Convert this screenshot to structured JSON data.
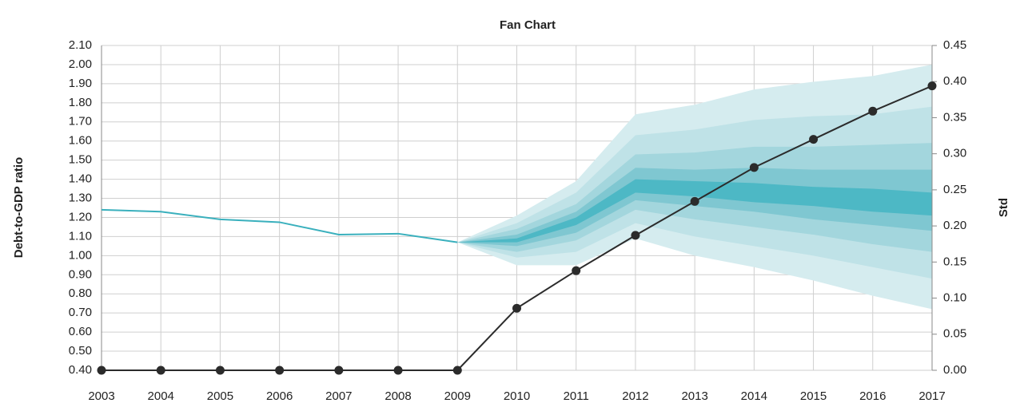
{
  "chart_data": {
    "type": "line",
    "title": "Fan Chart",
    "y_label": "Debt-to-GDP ratio",
    "y2_label": "Std",
    "x": [
      2003,
      2004,
      2005,
      2006,
      2007,
      2008,
      2009,
      2010,
      2011,
      2012,
      2013,
      2014,
      2015,
      2016,
      2017
    ],
    "xlim": [
      2003,
      2017
    ],
    "xticks": [
      2003,
      2004,
      2005,
      2006,
      2007,
      2008,
      2009,
      2010,
      2011,
      2012,
      2013,
      2014,
      2015,
      2016,
      2017
    ],
    "ylim": [
      0.4,
      2.1
    ],
    "yticks": [
      {
        "value": 0.4,
        "label": "0.40"
      },
      {
        "value": 0.5,
        "label": "0.50"
      },
      {
        "value": 0.6,
        "label": "0.60"
      },
      {
        "value": 0.7,
        "label": "0.70"
      },
      {
        "value": 0.8,
        "label": "0.80"
      },
      {
        "value": 0.9,
        "label": "0.90"
      },
      {
        "value": 1.0,
        "label": "1.00"
      },
      {
        "value": 1.1,
        "label": "1.10"
      },
      {
        "value": 1.2,
        "label": "1.20"
      },
      {
        "value": 1.3,
        "label": "1.30"
      },
      {
        "value": 1.4,
        "label": "1.40"
      },
      {
        "value": 1.5,
        "label": "1.50"
      },
      {
        "value": 1.6,
        "label": "1.60"
      },
      {
        "value": 1.7,
        "label": "1.70"
      },
      {
        "value": 1.8,
        "label": "1.80"
      },
      {
        "value": 1.9,
        "label": "1.90"
      },
      {
        "value": 2.0,
        "label": "2.00"
      },
      {
        "value": 2.1,
        "label": "2.10"
      }
    ],
    "y2lim": [
      0,
      0.45
    ],
    "y2ticks": [
      {
        "value": 0,
        "label": "0.00"
      },
      0.05,
      {
        "value": 0.1,
        "label": "0.10"
      },
      0.15,
      {
        "value": 0.2,
        "label": "0.20"
      },
      0.25,
      {
        "value": 0.3,
        "label": "0.30"
      },
      0.35,
      {
        "value": 0.4,
        "label": "0.40"
      },
      0.45
    ],
    "grid": true,
    "fan": {
      "colors": [
        "#d5ecef",
        "#bfe2e7",
        "#a3d6dd",
        "#7fc7d1",
        "#4db8c5"
      ],
      "bands": [
        {
          "lower": [
            null,
            null,
            null,
            null,
            null,
            null,
            1.07,
            0.95,
            0.95,
            1.09,
            1.0,
            0.94,
            0.87,
            0.79,
            0.72
          ],
          "upper": [
            null,
            null,
            null,
            null,
            null,
            null,
            1.07,
            1.21,
            1.39,
            1.74,
            1.79,
            1.87,
            1.91,
            1.94,
            2.0
          ]
        },
        {
          "lower": [
            null,
            null,
            null,
            null,
            null,
            null,
            1.07,
            0.99,
            1.02,
            1.17,
            1.1,
            1.05,
            1.0,
            0.94,
            0.88
          ],
          "upper": [
            null,
            null,
            null,
            null,
            null,
            null,
            1.07,
            1.17,
            1.33,
            1.63,
            1.66,
            1.71,
            1.73,
            1.74,
            1.78
          ]
        },
        {
          "lower": [
            null,
            null,
            null,
            null,
            null,
            null,
            1.07,
            1.02,
            1.08,
            1.24,
            1.19,
            1.15,
            1.11,
            1.06,
            1.02
          ],
          "upper": [
            null,
            null,
            null,
            null,
            null,
            null,
            1.07,
            1.14,
            1.27,
            1.53,
            1.54,
            1.57,
            1.57,
            1.58,
            1.59
          ]
        },
        {
          "lower": [
            null,
            null,
            null,
            null,
            null,
            null,
            1.07,
            1.05,
            1.12,
            1.29,
            1.26,
            1.23,
            1.19,
            1.16,
            1.13
          ],
          "upper": [
            null,
            null,
            null,
            null,
            null,
            null,
            1.07,
            1.11,
            1.23,
            1.46,
            1.45,
            1.46,
            1.45,
            1.45,
            1.45
          ]
        },
        {
          "lower": [
            null,
            null,
            null,
            null,
            null,
            null,
            1.07,
            1.07,
            1.16,
            1.33,
            1.31,
            1.28,
            1.26,
            1.23,
            1.21
          ],
          "upper": [
            null,
            null,
            null,
            null,
            null,
            null,
            1.07,
            1.09,
            1.2,
            1.4,
            1.39,
            1.38,
            1.36,
            1.35,
            1.33
          ]
        }
      ]
    },
    "series": [
      {
        "color": "#3ab0bd",
        "values": [
          1.24,
          1.23,
          1.19,
          1.175,
          1.11,
          1.115,
          1.07,
          null,
          null,
          null,
          null,
          null,
          null,
          null,
          null
        ]
      },
      {
        "color": "#2b2b2b",
        "axis": "y2",
        "marker": true,
        "values": [
          0,
          0,
          0,
          0,
          0,
          0,
          0,
          0.086,
          0.138,
          0.187,
          0.234,
          0.281,
          0.32,
          0.359,
          0.394
        ]
      }
    ]
  }
}
